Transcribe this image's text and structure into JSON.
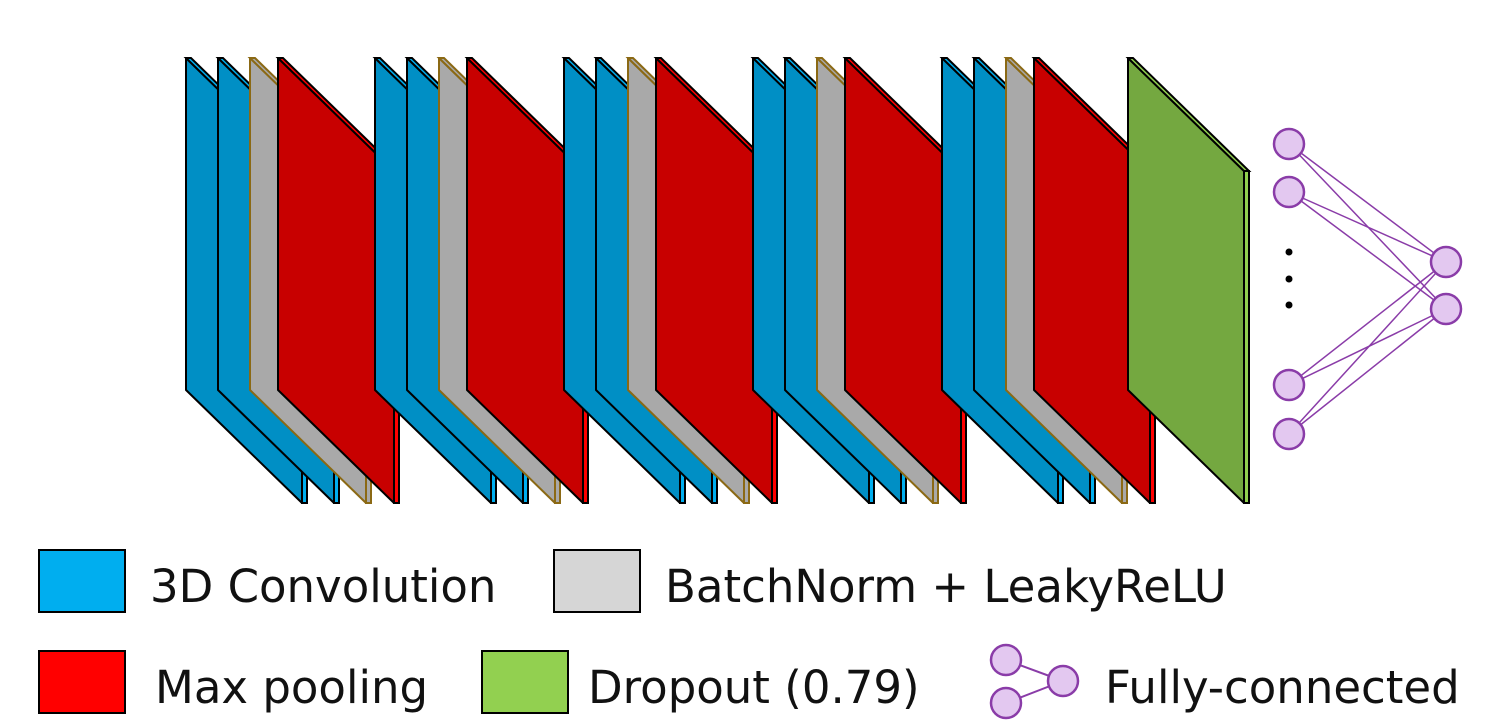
{
  "colors": {
    "conv_face": "#008fc5",
    "conv_edge": "#00aeef",
    "bn_face": "#a9a9a9",
    "bn_edge": "#8b6914",
    "pool_face": "#c80000",
    "pool_edge": "#ff0000",
    "dropout_face": "#74a840",
    "dropout_edge": "#92d050",
    "fc_node": "#e3c8f0",
    "fc_stroke": "#8a3ca8",
    "outline": "#000000"
  },
  "network": {
    "blocks": [
      {
        "name": "block-1",
        "layers": [
          "conv",
          "conv",
          "bn",
          "pool"
        ]
      },
      {
        "name": "block-2",
        "layers": [
          "conv",
          "conv",
          "bn",
          "pool"
        ]
      },
      {
        "name": "block-3",
        "layers": [
          "conv",
          "conv",
          "bn",
          "pool"
        ]
      },
      {
        "name": "block-4",
        "layers": [
          "conv",
          "conv",
          "bn",
          "pool"
        ]
      },
      {
        "name": "block-5",
        "layers": [
          "conv",
          "conv",
          "bn",
          "pool"
        ]
      }
    ],
    "final_layer": "dropout",
    "fc": {
      "input_nodes_shown": 4,
      "output_nodes": 2,
      "ellipsis": "⋮"
    }
  },
  "legend": {
    "conv": "3D Convolution",
    "bn": "BatchNorm + LeakyReLU",
    "pool": "Max pooling",
    "dropout": "Dropout (0.79)",
    "fc": "Fully-connected"
  }
}
